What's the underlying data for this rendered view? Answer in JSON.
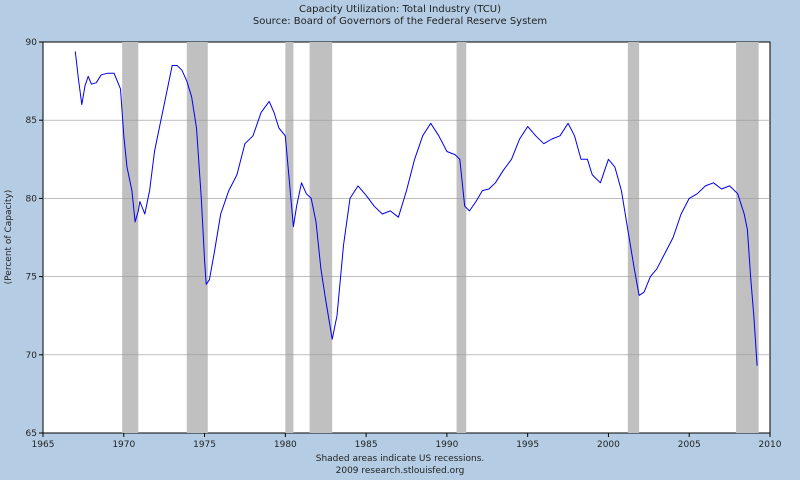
{
  "chart_data": {
    "type": "line",
    "title": "Capacity Utilization: Total Industry (TCU)",
    "subtitle": "Source: Board of Governors of the Federal Reserve System",
    "xlabel": "",
    "ylabel": "(Percent of Capacity)",
    "xlim": [
      1965,
      2010
    ],
    "ylim": [
      65,
      90
    ],
    "x_ticks": [
      1965,
      1970,
      1975,
      1980,
      1985,
      1990,
      1995,
      2000,
      2005,
      2010
    ],
    "y_ticks": [
      65,
      70,
      75,
      80,
      85,
      90
    ],
    "grid": true,
    "footnote": "Shaded areas indicate US recessions.",
    "credit": "2009 research.stlouisfed.org",
    "line_color": "#0000ee",
    "recession_color": "#c0c0c0",
    "recessions": [
      [
        1969.9,
        1970.9
      ],
      [
        1973.9,
        1975.2
      ],
      [
        1980.0,
        1980.5
      ],
      [
        1981.5,
        1982.9
      ],
      [
        1990.6,
        1991.2
      ],
      [
        2001.2,
        2001.9
      ],
      [
        2007.9,
        2009.3
      ]
    ],
    "series": [
      {
        "name": "Capacity Utilization (TCU)",
        "x": [
          1967.0,
          1967.2,
          1967.4,
          1967.6,
          1967.8,
          1968.0,
          1968.3,
          1968.6,
          1969.0,
          1969.4,
          1969.8,
          1970.0,
          1970.2,
          1970.5,
          1970.7,
          1970.9,
          1971.0,
          1971.3,
          1971.6,
          1971.9,
          1972.2,
          1972.6,
          1973.0,
          1973.3,
          1973.6,
          1973.9,
          1974.2,
          1974.5,
          1974.8,
          1975.0,
          1975.1,
          1975.3,
          1975.6,
          1976.0,
          1976.5,
          1977.0,
          1977.5,
          1978.0,
          1978.5,
          1979.0,
          1979.3,
          1979.6,
          1980.0,
          1980.3,
          1980.5,
          1980.7,
          1981.0,
          1981.3,
          1981.6,
          1981.9,
          1982.2,
          1982.5,
          1982.9,
          1983.2,
          1983.6,
          1984.0,
          1984.5,
          1985.0,
          1985.5,
          1986.0,
          1986.5,
          1987.0,
          1987.5,
          1988.0,
          1988.5,
          1989.0,
          1989.5,
          1990.0,
          1990.5,
          1990.8,
          1991.1,
          1991.4,
          1991.8,
          1992.2,
          1992.6,
          1993.0,
          1993.5,
          1994.0,
          1994.5,
          1995.0,
          1995.5,
          1996.0,
          1996.5,
          1997.0,
          1997.5,
          1997.9,
          1998.3,
          1998.7,
          1999.0,
          1999.5,
          2000.0,
          2000.4,
          2000.8,
          2001.2,
          2001.6,
          2001.9,
          2002.2,
          2002.6,
          2003.0,
          2003.5,
          2004.0,
          2004.5,
          2005.0,
          2005.5,
          2006.0,
          2006.5,
          2007.0,
          2007.5,
          2008.0,
          2008.4,
          2008.6,
          2008.8,
          2009.0,
          2009.2
        ],
        "values": [
          89.4,
          87.6,
          86.0,
          87.2,
          87.8,
          87.3,
          87.4,
          87.9,
          88.0,
          88.0,
          87.0,
          84.0,
          82.0,
          80.5,
          78.5,
          79.2,
          79.8,
          79.0,
          80.5,
          83.0,
          84.5,
          86.5,
          88.5,
          88.5,
          88.2,
          87.5,
          86.5,
          84.5,
          80.0,
          76.0,
          74.5,
          74.8,
          76.5,
          79.0,
          80.5,
          81.5,
          83.5,
          84.0,
          85.5,
          86.2,
          85.5,
          84.5,
          84.0,
          80.5,
          78.2,
          79.5,
          81.0,
          80.3,
          80.0,
          78.5,
          75.5,
          73.5,
          71.0,
          72.5,
          77.0,
          80.0,
          80.8,
          80.2,
          79.5,
          79.0,
          79.2,
          78.8,
          80.5,
          82.5,
          84.0,
          84.8,
          84.0,
          83.0,
          82.8,
          82.5,
          79.5,
          79.2,
          79.8,
          80.5,
          80.6,
          81.0,
          81.8,
          82.5,
          83.8,
          84.6,
          84.0,
          83.5,
          83.8,
          84.0,
          84.8,
          84.0,
          82.5,
          82.5,
          81.5,
          81.0,
          82.5,
          82.0,
          80.5,
          78.0,
          75.5,
          73.8,
          74.0,
          75.0,
          75.5,
          76.5,
          77.5,
          79.0,
          80.0,
          80.3,
          80.8,
          81.0,
          80.6,
          80.8,
          80.3,
          79.0,
          78.0,
          75.0,
          72.5,
          69.3
        ]
      }
    ]
  }
}
